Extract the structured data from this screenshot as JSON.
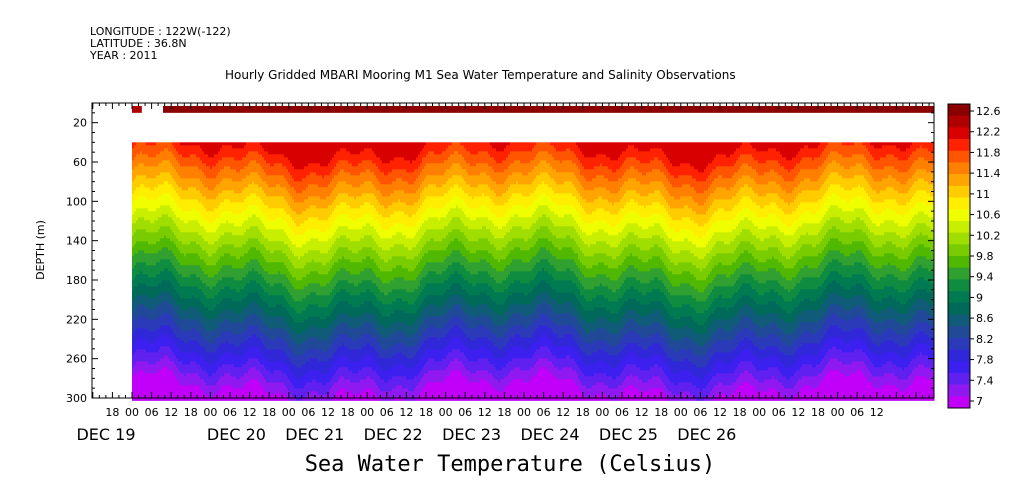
{
  "header": {
    "longitude": "LONGITUDE : 122W(-122)",
    "latitude": "LATITUDE : 36.8N",
    "year": "YEAR : 2011"
  },
  "chart_data": {
    "type": "heatmap",
    "title": "Hourly Gridded MBARI Mooring M1 Sea Water Temperature and Salinity Observations",
    "bottom_title": "Sea Water Temperature (Celsius)",
    "ylabel": "DEPTH (m)",
    "y_axis": {
      "range": [
        0,
        300
      ],
      "inverted": true,
      "ticks": [
        20,
        60,
        100,
        140,
        180,
        220,
        260,
        300
      ]
    },
    "x_axis": {
      "start": "DEC 19 12:00",
      "end": "DEC 26 16:00",
      "hour_ticks": [
        "18",
        "00",
        "06",
        "12",
        "18",
        "00",
        "06",
        "12",
        "18",
        "00",
        "06",
        "12",
        "18",
        "00",
        "06",
        "12",
        "18",
        "00",
        "06",
        "12",
        "18",
        "00",
        "06",
        "12",
        "18",
        "00",
        "06",
        "12",
        "18",
        "00",
        "06",
        "12",
        "18",
        "00",
        "06",
        "12",
        "18",
        "00",
        "06",
        "12"
      ],
      "day_labels": [
        "DEC 19",
        "DEC 20",
        "DEC 21",
        "DEC 22",
        "DEC 23",
        "DEC 24",
        "DEC 25",
        "DEC 26"
      ]
    },
    "colorbar": {
      "ticks": [
        "12.6",
        "12.2",
        "11.8",
        "11.4",
        "11",
        "10.6",
        "10.2",
        "9.8",
        "9.4",
        "9",
        "8.6",
        "8.2",
        "7.8",
        "7.4",
        "7"
      ],
      "colors": [
        "#8b0000",
        "#b00000",
        "#d80000",
        "#ff2200",
        "#ff5500",
        "#ff8000",
        "#ffa400",
        "#ffcc00",
        "#ffee00",
        "#f0ff00",
        "#c8ee00",
        "#a0dd00",
        "#78cc00",
        "#50b800",
        "#30a030",
        "#108c40",
        "#007a50",
        "#006a5a",
        "#105c78",
        "#204a98",
        "#2a3ab8",
        "#3028d8",
        "#3c20f0",
        "#6020f0",
        "#9018f0",
        "#c000f8"
      ]
    },
    "data_start_date": "DEC 20 00:00",
    "surface_gap": [
      "DEC 20 03:00",
      "DEC 20 06:00"
    ]
  }
}
